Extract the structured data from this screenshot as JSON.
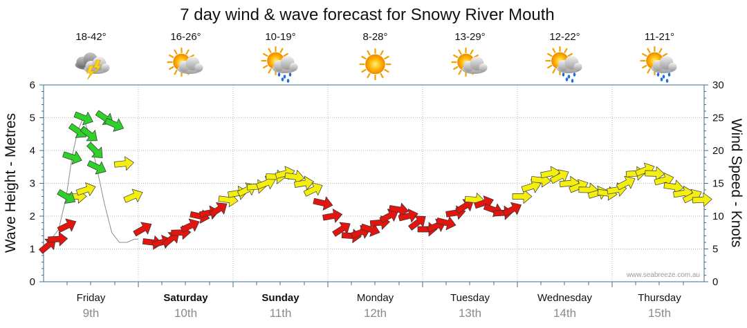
{
  "chart_data": {
    "type": "line",
    "title": "7 day wind & wave forecast for Snowy River Mouth",
    "ylabel": "Wave Height - Metres",
    "y2label": "Wind Speed - Knots",
    "ylim": [
      0,
      6
    ],
    "y2lim": [
      0,
      30
    ],
    "y_ticks": [
      "0",
      "1",
      "2",
      "3",
      "4",
      "5",
      "6"
    ],
    "y2_ticks": [
      "0",
      "5",
      "10",
      "15",
      "20",
      "25",
      "30"
    ],
    "grid": true,
    "credit": "www.seabreeze.com.au",
    "days": [
      {
        "day": "Friday",
        "date": "9th",
        "temp": "18-42°",
        "icon": "thunderstorm-icon",
        "bold": false
      },
      {
        "day": "Saturday",
        "date": "10th",
        "temp": "16-26°",
        "icon": "partly-cloudy-icon",
        "bold": true
      },
      {
        "day": "Sunday",
        "date": "11th",
        "temp": "10-19°",
        "icon": "sun-showers-icon",
        "bold": true
      },
      {
        "day": "Monday",
        "date": "12th",
        "temp": "8-28°",
        "icon": "sunny-icon",
        "bold": false
      },
      {
        "day": "Tuesday",
        "date": "13th",
        "temp": "13-29°",
        "icon": "partly-cloudy-icon",
        "bold": false
      },
      {
        "day": "Wednesday",
        "date": "14th",
        "temp": "12-22°",
        "icon": "sun-showers-icon",
        "bold": false
      },
      {
        "day": "Thursday",
        "date": "15th",
        "temp": "11-21°",
        "icon": "sun-showers-icon",
        "bold": false
      }
    ],
    "wave_series": {
      "name": "Wave Height",
      "x": [
        0.0,
        0.08,
        0.16,
        0.24,
        0.3,
        0.36,
        0.42,
        0.48,
        0.56,
        0.64,
        0.72,
        0.8,
        0.88,
        0.96,
        1.0
      ],
      "values": [
        1.0,
        1.3,
        1.6,
        2.6,
        3.8,
        4.6,
        5.0,
        4.5,
        3.5,
        2.4,
        1.5,
        1.2,
        1.2,
        1.3,
        1.3
      ]
    },
    "wind_series": {
      "name": "Wind Speed",
      "x": [
        0.0,
        0.1,
        0.2,
        0.3,
        0.4,
        0.5,
        0.6,
        0.7,
        0.8,
        0.9,
        1.0,
        1.1,
        1.2,
        1.3,
        1.4,
        1.5,
        1.6,
        1.7,
        1.8,
        1.9,
        2.0,
        2.1,
        2.2,
        2.3,
        2.4,
        2.5,
        2.6,
        2.7,
        2.8,
        2.9,
        3.0,
        3.1,
        3.2,
        3.3,
        3.4,
        3.5,
        3.6,
        3.7,
        3.8,
        3.9,
        4.0,
        4.1,
        4.2,
        4.3,
        4.4,
        4.5,
        4.6,
        4.7,
        4.8,
        4.9,
        5.0,
        5.1,
        5.2,
        5.3,
        5.4,
        5.5,
        5.6,
        5.7,
        5.8,
        5.9,
        6.0,
        6.1,
        6.2,
        6.3,
        6.4,
        6.5,
        6.6,
        6.7,
        6.8,
        6.9
      ],
      "values": [
        5.5,
        6.5,
        8.5,
        13,
        14,
        20,
        25,
        24,
        18,
        13,
        8,
        6,
        6,
        6.5,
        7.5,
        8.5,
        10,
        10.5,
        11,
        12.5,
        13.5,
        14,
        14.5,
        15,
        16,
        16.5,
        16,
        15,
        14,
        12,
        10,
        8,
        7,
        7.5,
        8,
        9,
        10,
        11,
        10,
        9,
        8,
        8.5,
        9,
        10.5,
        11.5,
        12.5,
        12,
        11,
        10.5,
        11,
        13,
        14.5,
        15.5,
        16.5,
        16,
        15,
        14.5,
        14,
        13.5,
        13.5,
        14,
        15,
        16.5,
        17,
        16.5,
        15.5,
        14.5,
        13.5,
        13,
        12.5
      ]
    }
  }
}
